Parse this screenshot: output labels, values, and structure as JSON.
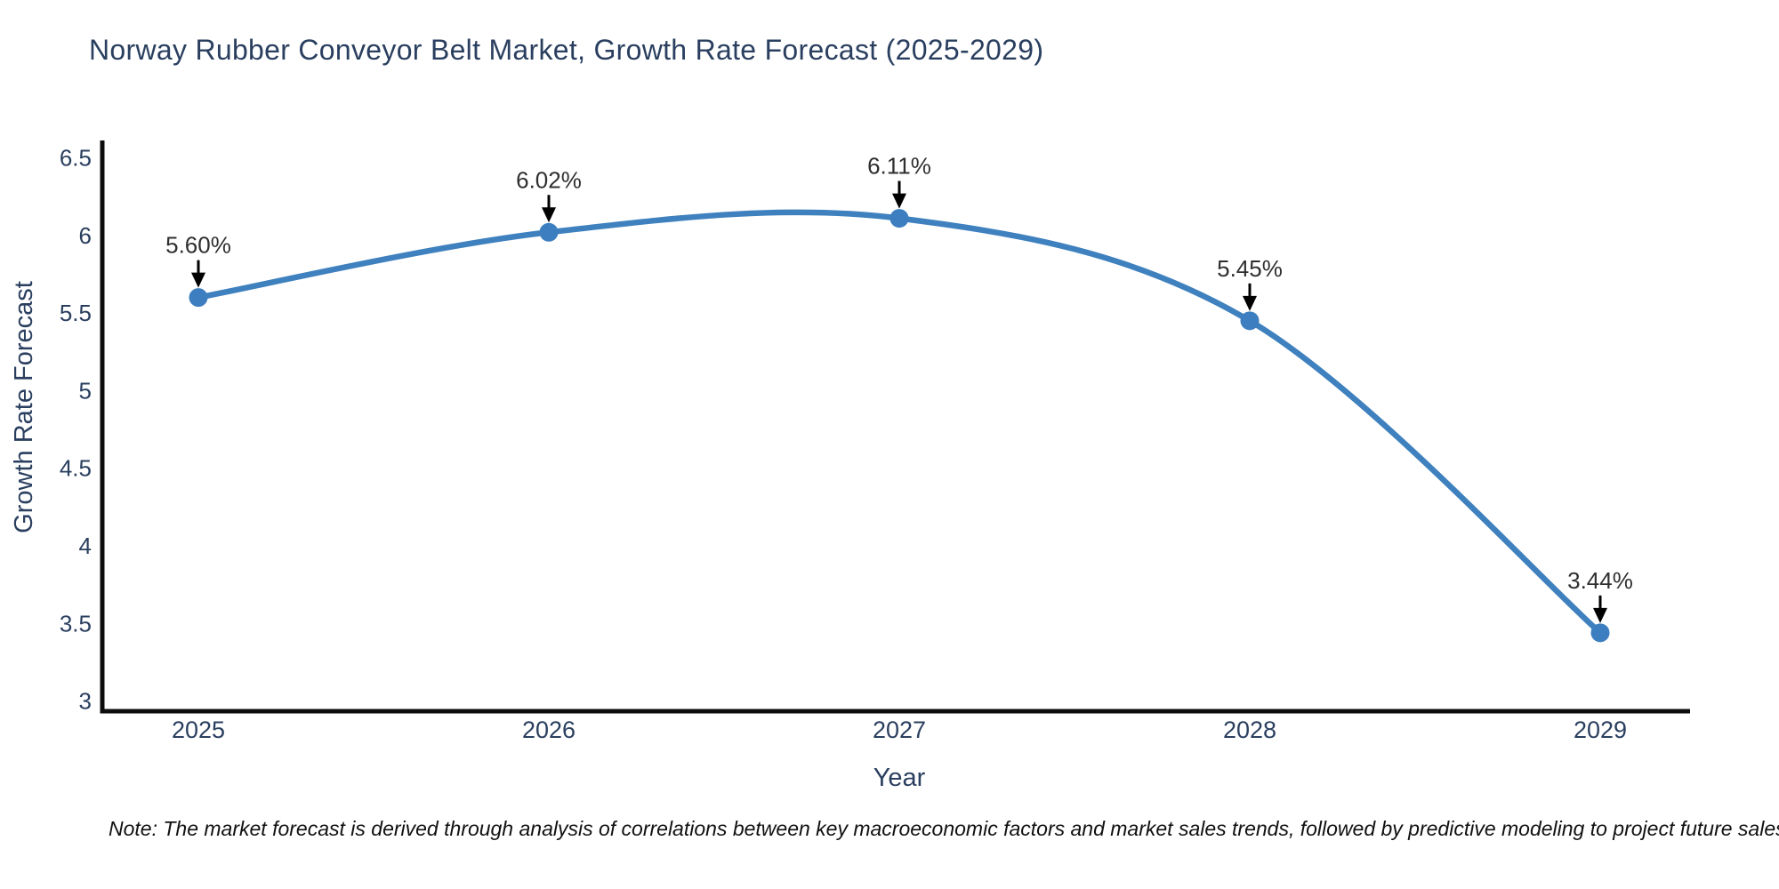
{
  "page": {
    "note": "Note: The market forecast is derived through analysis of correlations between key macroeconomic factors and market sales trends, followed by predictive modeling to project future sales"
  },
  "chart_data": {
    "type": "line",
    "title": "Norway Rubber Conveyor Belt Market, Growth Rate Forecast (2025-2029)",
    "xlabel": "Year",
    "ylabel": "Growth Rate Forecast",
    "x": [
      2025,
      2026,
      2027,
      2028,
      2029
    ],
    "series": [
      {
        "name": "Growth Rate Forecast",
        "values": [
          5.6,
          6.02,
          6.11,
          5.45,
          3.44
        ]
      }
    ],
    "point_labels": [
      "5.60%",
      "6.02%",
      "6.11%",
      "5.45%",
      "3.44%"
    ],
    "yticks": [
      6.5,
      6,
      5.5,
      5,
      4.5,
      4,
      3.5,
      3
    ],
    "ylim": [
      2.935,
      6.6
    ],
    "grid": false,
    "legend_position": "none",
    "line_shape": "spline",
    "line_color": "#3f81be",
    "marker_color": "#3c7ebf",
    "axis_color": "#0d0d0d",
    "annotation_color": "#000000"
  }
}
